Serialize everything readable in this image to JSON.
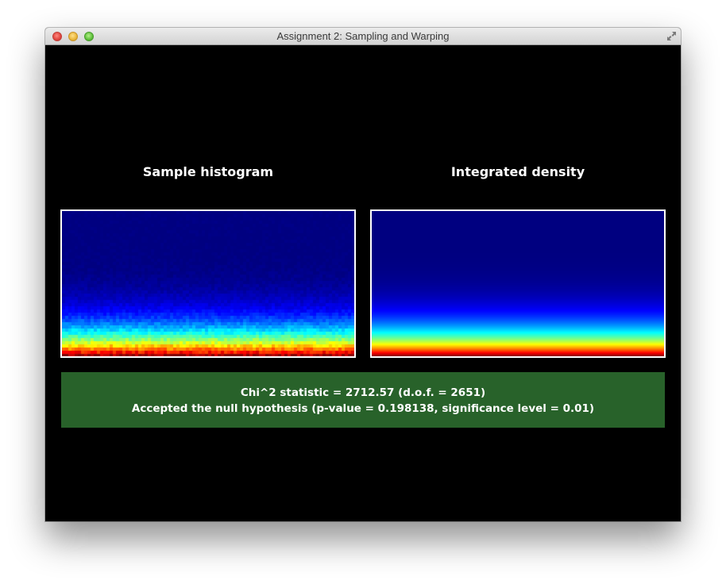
{
  "window": {
    "title": "Assignment 2: Sampling and Warping"
  },
  "panels": {
    "left": {
      "title": "Sample histogram",
      "kind": "histogram",
      "colormap": "jet"
    },
    "right": {
      "title": "Integrated density",
      "kind": "density",
      "colormap": "jet"
    }
  },
  "result": {
    "line1": "Chi^2 statistic = 2712.57 (d.o.f. = 2651)",
    "line2": "Accepted the null hypothesis (p-value = 0.198138, significance level = 0.01)",
    "background": "#28622a"
  },
  "icons": {
    "close": "close-button-icon",
    "minimize": "minimize-button-icon",
    "zoom": "zoom-button-icon",
    "fullscreen": "fullscreen-icon"
  }
}
